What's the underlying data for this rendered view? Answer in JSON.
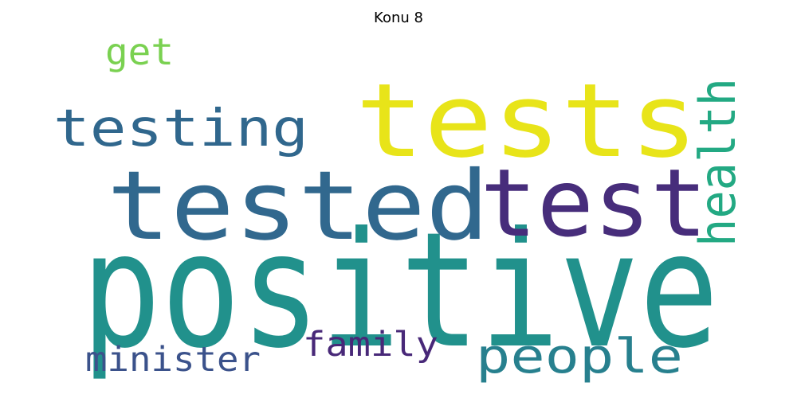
{
  "figure": {
    "title": "Konu 8"
  },
  "word_cloud": {
    "words": [
      {
        "text": "positive",
        "color": "#21918c"
      },
      {
        "text": "tests",
        "color": "#e8e419"
      },
      {
        "text": "tested",
        "color": "#31688e"
      },
      {
        "text": "test",
        "color": "#472d7b"
      },
      {
        "text": "testing",
        "color": "#30678d"
      },
      {
        "text": "people",
        "color": "#27808e"
      },
      {
        "text": "health",
        "color": "#23a983"
      },
      {
        "text": "minister",
        "color": "#3b528b"
      },
      {
        "text": "family",
        "color": "#482878"
      },
      {
        "text": "get",
        "color": "#7ad151"
      }
    ]
  }
}
